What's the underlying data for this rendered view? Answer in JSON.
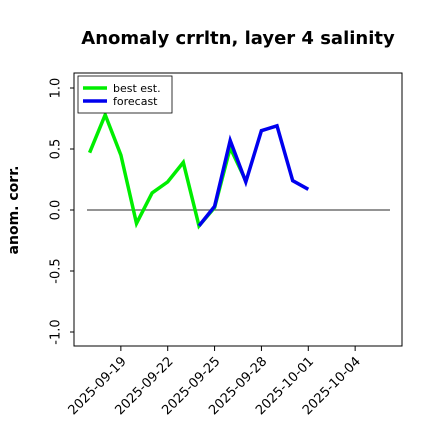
{
  "chart_data": {
    "type": "line",
    "title": "Anomaly crrltn, layer 4 salinity",
    "xlabel": "",
    "ylabel": "anom. corr.",
    "ylim": [
      -1.0,
      1.0
    ],
    "yticks": [
      "-1.0",
      "-0.5",
      "0.0",
      "0.5",
      "1.0"
    ],
    "ytick_values": [
      -1.0,
      -0.5,
      0.0,
      0.5,
      1.0
    ],
    "xlim": [
      "2025-09-16",
      "2025-10-07"
    ],
    "xticks": [
      {
        "label": "2025-09-19",
        "date": "2025-09-19",
        "color": "#000000"
      },
      {
        "label": "2025-09-22",
        "date": "2025-09-22",
        "color": "#000000"
      },
      {
        "label": "2025-09-25",
        "date": "2025-09-25",
        "color": "#2e8b2e"
      },
      {
        "label": "2025-09-28",
        "date": "2025-09-28",
        "color": "#000000"
      },
      {
        "label": "2025-10-01",
        "date": "2025-10-01",
        "color": "#000000"
      },
      {
        "label": "2025-10-04",
        "date": "2025-10-04",
        "color": "#000000"
      }
    ],
    "zero_line": true,
    "legend_position": "top-left",
    "series": [
      {
        "name": "best est.",
        "color": "#00ee00",
        "points": [
          {
            "x": "2025-09-17",
            "y": 0.47
          },
          {
            "x": "2025-09-18",
            "y": 0.78
          },
          {
            "x": "2025-09-19",
            "y": 0.45
          },
          {
            "x": "2025-09-20",
            "y": -0.11
          },
          {
            "x": "2025-09-21",
            "y": 0.14
          },
          {
            "x": "2025-09-22",
            "y": 0.23
          },
          {
            "x": "2025-09-23",
            "y": 0.39
          },
          {
            "x": "2025-09-24",
            "y": -0.13
          },
          {
            "x": "2025-09-25",
            "y": 0.02
          },
          {
            "x": "2025-09-26",
            "y": 0.51
          },
          {
            "x": "2025-09-27",
            "y": 0.24
          }
        ]
      },
      {
        "name": "forecast",
        "color": "#0000ee",
        "points": [
          {
            "x": "2025-09-24",
            "y": -0.13
          },
          {
            "x": "2025-09-25",
            "y": 0.03
          },
          {
            "x": "2025-09-26",
            "y": 0.57
          },
          {
            "x": "2025-09-27",
            "y": 0.23
          },
          {
            "x": "2025-09-28",
            "y": 0.65
          },
          {
            "x": "2025-09-29",
            "y": 0.69
          },
          {
            "x": "2025-09-30",
            "y": 0.24
          },
          {
            "x": "2025-10-01",
            "y": 0.17
          }
        ]
      }
    ]
  }
}
